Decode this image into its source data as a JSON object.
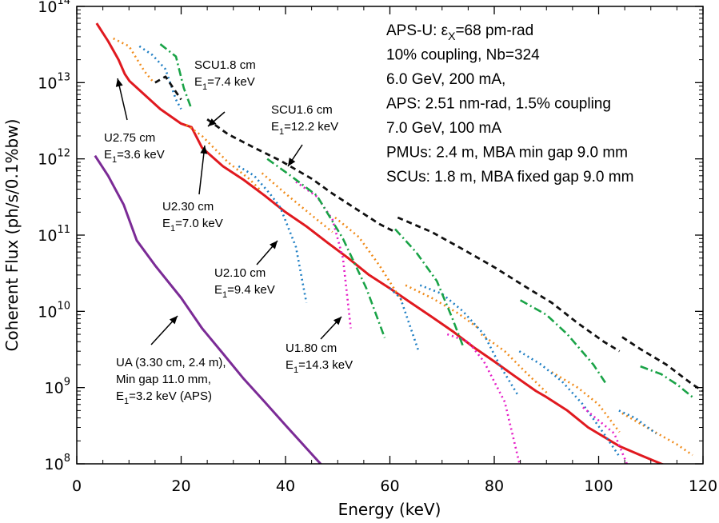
{
  "chart_data": {
    "type": "line",
    "xlabel": "Energy (keV)",
    "ylabel": "Coherent Flux (ph/s/0.1%bw)",
    "xlim": [
      0,
      120
    ],
    "ylim": [
      100000000.0,
      100000000000000.0
    ],
    "yscale": "log",
    "xticks": [
      0,
      20,
      40,
      60,
      80,
      100,
      120
    ],
    "yticks": [
      {
        "exp": 8,
        "base": "10",
        "power": "8"
      },
      {
        "exp": 9,
        "base": "10",
        "power": "9"
      },
      {
        "exp": 10,
        "base": "10",
        "power": "10"
      },
      {
        "exp": 11,
        "base": "10",
        "power": "11"
      },
      {
        "exp": 12,
        "base": "10",
        "power": "12"
      },
      {
        "exp": 13,
        "base": "10",
        "power": "13"
      },
      {
        "exp": 14,
        "base": "10",
        "power": "14"
      }
    ],
    "grid": false,
    "series": [
      {
        "color": "#e0191f",
        "dash": "",
        "width": 3,
        "segments": [
          [
            [
              3.8,
              60000000000000.0
            ],
            [
              6,
              35000000000000.0
            ],
            [
              8,
              20000000000000.0
            ],
            [
              9.2,
              13000000000000.0
            ],
            [
              10.1,
              10500000000000.0
            ],
            [
              12,
              8000000000000.0
            ],
            [
              16,
              4500000000000.0
            ],
            [
              20,
              2900000000000.0
            ],
            [
              22,
              2600000000000.0
            ],
            [
              24,
              1400000000000.0
            ],
            [
              28,
              800000000000.0
            ],
            [
              32,
              530000000000.0
            ],
            [
              36,
              330000000000.0
            ],
            [
              40,
              200000000000.0
            ],
            [
              44,
              130000000000.0
            ],
            [
              48,
              80000000000.0
            ],
            [
              52,
              50000000000.0
            ],
            [
              56,
              30000000000.0
            ],
            [
              60,
              20000000000.0
            ],
            [
              64,
              13000000000.0
            ],
            [
              68,
              8500000000.0
            ],
            [
              72,
              5500000000.0
            ],
            [
              76,
              3400000000.0
            ],
            [
              80,
              2200000000.0
            ],
            [
              84,
              1400000000.0
            ],
            [
              88,
              900000000.0
            ],
            [
              90,
              750000000.0
            ],
            [
              94,
              500000000.0
            ],
            [
              98,
              300000000.0
            ],
            [
              104,
              170000000.0
            ],
            [
              108,
              130000000.0
            ],
            [
              112,
              100000000.0
            ],
            [
              116,
              80000000.0
            ]
          ]
        ]
      },
      {
        "color": "#f08c1c",
        "dash": "2 4",
        "width": 2.6,
        "segments": [
          [
            [
              7,
              38000000000000.0
            ],
            [
              10,
              30000000000000.0
            ],
            [
              13,
              14000000000000.0
            ],
            [
              14.5,
              10500000000000.0
            ]
          ],
          [
            [
              21,
              2800000000000.0
            ],
            [
              24,
              2000000000000.0
            ],
            [
              29,
              900000000000.0
            ],
            [
              33,
              550000000000.0
            ],
            [
              35,
              400000000000.0
            ]
          ],
          [
            [
              35.5,
              650000000000.0
            ],
            [
              40,
              350000000000.0
            ],
            [
              46,
              160000000000.0
            ],
            [
              49,
              110000000000.0
            ]
          ],
          [
            [
              49.5,
              170000000000.0
            ],
            [
              54,
              95000000000.0
            ],
            [
              58,
              40000000000.0
            ],
            [
              62.5,
              13000000000.0
            ]
          ],
          [
            [
              63,
              22000000000.0
            ],
            [
              68,
              15000000000.0
            ],
            [
              73,
              9500000000.0
            ],
            [
              77,
              6000000000.0
            ]
          ],
          [
            [
              77.5,
              5000000000.0
            ],
            [
              82,
              3000000000.0
            ],
            [
              86,
              1600000000.0
            ],
            [
              90.5,
              800000000.0
            ]
          ],
          [
            [
              91,
              1600000000.0
            ],
            [
              96,
              1000000000.0
            ],
            [
              100,
              600000000.0
            ],
            [
              104,
              260000000.0
            ]
          ],
          [
            [
              104.5,
              460000000.0
            ],
            [
              110,
              280000000.0
            ],
            [
              115,
              180000000.0
            ],
            [
              118,
              130000000.0
            ]
          ]
        ]
      },
      {
        "color": "#1f7fc4",
        "dash": "2 4",
        "width": 2.6,
        "segments": [
          [
            [
              12,
              30000000000000.0
            ],
            [
              14.5,
              23000000000000.0
            ],
            [
              17,
              15000000000000.0
            ],
            [
              19,
              6000000000000.0
            ],
            [
              20,
              4500000000000.0
            ]
          ],
          [
            [
              31,
              800000000000.0
            ],
            [
              34,
              600000000000.0
            ],
            [
              37,
              350000000000.0
            ],
            [
              39,
              230000000000.0
            ],
            [
              42,
              70000000000.0
            ],
            [
              44,
              13000000000.0
            ]
          ],
          [
            [
              60,
              20000000000.0
            ],
            [
              62,
              15000000000.0
            ],
            [
              64,
              6000000000.0
            ],
            [
              65.5,
              3000000000.0
            ]
          ],
          [
            [
              65.8,
              22000000000.0
            ],
            [
              70,
              17000000000.0
            ],
            [
              74,
              10000000000.0
            ],
            [
              78,
              5000000000.0
            ],
            [
              81,
              2000000000.0
            ],
            [
              84.5,
              800000000.0
            ]
          ],
          [
            [
              84.8,
              3000000000.0
            ],
            [
              89,
              2000000000.0
            ],
            [
              93,
              1200000000.0
            ],
            [
              97,
              600000000.0
            ],
            [
              101,
              250000000.0
            ],
            [
              103.8,
              130000000.0
            ]
          ],
          [
            [
              103.9,
              500000000.0
            ],
            [
              107,
              400000000.0
            ],
            [
              111,
              250000000.0
            ]
          ]
        ]
      },
      {
        "color": "#e51ec7",
        "dash": "2 4",
        "width": 2.6,
        "segments": [
          [
            [
              42,
              500000000000.0
            ],
            [
              46,
              320000000000.0
            ],
            [
              49,
              160000000000.0
            ],
            [
              51,
              50000000000.0
            ],
            [
              52.5,
              6000000000.0
            ]
          ],
          [
            [
              71,
              5000000000.0
            ],
            [
              75,
              4000000000.0
            ],
            [
              78,
              2200000000.0
            ],
            [
              82,
              650000000.0
            ],
            [
              85,
              90000000.0
            ]
          ],
          [
            [
              97,
              550000000.0
            ],
            [
              100,
              370000000.0
            ],
            [
              103,
              250000000.0
            ],
            [
              106,
              80000000.0
            ]
          ]
        ]
      },
      {
        "color": "#1aa347",
        "dash": "10 4 2 4",
        "width": 2.6,
        "segments": [
          [
            [
              16,
              32000000000000.0
            ],
            [
              19,
              22000000000000.0
            ],
            [
              20.5,
              8500000000000.0
            ],
            [
              22,
              4500000000000.0
            ]
          ],
          [
            [
              36.5,
              1000000000000.0
            ],
            [
              41,
              600000000000.0
            ],
            [
              46,
              330000000000.0
            ],
            [
              51,
              90000000000.0
            ],
            [
              55.5,
              20000000000.0
            ],
            [
              59,
              4500000000.0
            ]
          ],
          [
            [
              61,
              120000000000.0
            ],
            [
              65,
              60000000000.0
            ],
            [
              69,
              25000000000.0
            ],
            [
              72,
              8000000000.0
            ],
            [
              74,
              3500000000.0
            ]
          ],
          [
            [
              85,
              14000000000.0
            ],
            [
              90,
              9000000000.0
            ],
            [
              94,
              5000000000.0
            ],
            [
              99,
              2000000000.0
            ],
            [
              101.5,
              1100000000.0
            ]
          ],
          [
            [
              108,
              1900000000.0
            ],
            [
              112,
              1500000000.0
            ],
            [
              115,
              1100000000.0
            ],
            [
              118,
              750000000.0
            ]
          ]
        ]
      },
      {
        "color": "#111111",
        "dash": "7 5",
        "width": 2.8,
        "segments": [
          [
            [
              15,
              10000000000000.0
            ],
            [
              17,
              12000000000000.0
            ],
            [
              20,
              6000000000000.0
            ]
          ],
          [
            [
              25,
              3300000000000.0
            ],
            [
              29,
              2100000000000.0
            ],
            [
              34,
              1400000000000.0
            ],
            [
              39,
              950000000000.0
            ],
            [
              45,
              550000000000.0
            ],
            [
              49,
              350000000000.0
            ],
            [
              54,
              210000000000.0
            ],
            [
              58,
              140000000000.0
            ],
            [
              61,
              110000000000.0
            ]
          ],
          [
            [
              61.5,
              170000000000.0
            ],
            [
              68,
              110000000000.0
            ],
            [
              74,
              65000000000.0
            ],
            [
              80,
              38000000000.0
            ],
            [
              86,
              21000000000.0
            ],
            [
              91,
              13000000000.0
            ],
            [
              96,
              7000000000.0
            ],
            [
              101,
              4000000000.0
            ],
            [
              104,
              3000000000.0
            ]
          ],
          [
            [
              104.5,
              4600000000.0
            ],
            [
              108,
              3200000000.0
            ],
            [
              113,
              2000000000.0
            ],
            [
              118,
              1100000000.0
            ],
            [
              120,
              900000000.0
            ]
          ]
        ]
      },
      {
        "color": "#7b2b96",
        "dash": "",
        "width": 3,
        "segments": [
          [
            [
              3.5,
              1100000000000.0
            ],
            [
              6,
              600000000000.0
            ],
            [
              9,
              250000000000.0
            ],
            [
              11.5,
              85000000000.0
            ],
            [
              15,
              40000000000.0
            ],
            [
              20,
              15000000000.0
            ],
            [
              24,
              6000000000.0
            ],
            [
              28,
              2800000000.0
            ],
            [
              32,
              1300000000.0
            ],
            [
              36,
              650000000.0
            ],
            [
              40,
              320000000.0
            ],
            [
              44,
              160000000.0
            ],
            [
              48,
              80000000.0
            ]
          ]
        ]
      }
    ],
    "annotations": [
      {
        "lines": [
          {
            "text": "SCU1.8 cm"
          },
          {
            "text": "E",
            "sub": "1",
            "rest": "=7.4 keV"
          }
        ]
      },
      {
        "lines": [
          {
            "text": "SCU1.6 cm"
          },
          {
            "text": "E",
            "sub": "1",
            "rest": "=12.2 keV"
          }
        ]
      },
      {
        "lines": [
          {
            "text": "U2.75 cm"
          },
          {
            "text": "E",
            "sub": "1",
            "rest": "=3.6 keV"
          }
        ]
      },
      {
        "lines": [
          {
            "text": "U2.30 cm"
          },
          {
            "text": "E",
            "sub": "1",
            "rest": "=7.0 keV"
          }
        ]
      },
      {
        "lines": [
          {
            "text": "U2.10 cm"
          },
          {
            "text": "E",
            "sub": "1",
            "rest": "=9.4 keV"
          }
        ]
      },
      {
        "lines": [
          {
            "text": "U1.80 cm"
          },
          {
            "text": "E",
            "sub": "1",
            "rest": "=14.3 keV"
          }
        ]
      },
      {
        "lines": [
          {
            "text": "UA (3.30 cm, 2.4 m),"
          },
          {
            "text": "Min gap 11.0 mm,"
          },
          {
            "text": "E",
            "sub": "1",
            "rest": "=3.2 keV (APS)"
          }
        ]
      }
    ],
    "info_lines": [
      {
        "pre": "APS-U: ",
        "sym": "ε",
        "sub": "X",
        "post": "=68 pm-rad"
      },
      {
        "pre": "10% coupling, Nb=324"
      },
      {
        "pre": "6.0 GeV, 200 mA,"
      },
      {
        "pre": "APS: 2.51 nm-rad, 1.5% coupling"
      },
      {
        "pre": "7.0 GeV, 100 mA"
      },
      {
        "pre": "PMUs: 2.4 m, MBA min gap 9.0 mm"
      },
      {
        "pre": "SCUs: 1.8 m, MBA fixed gap 9.0 mm"
      }
    ]
  }
}
